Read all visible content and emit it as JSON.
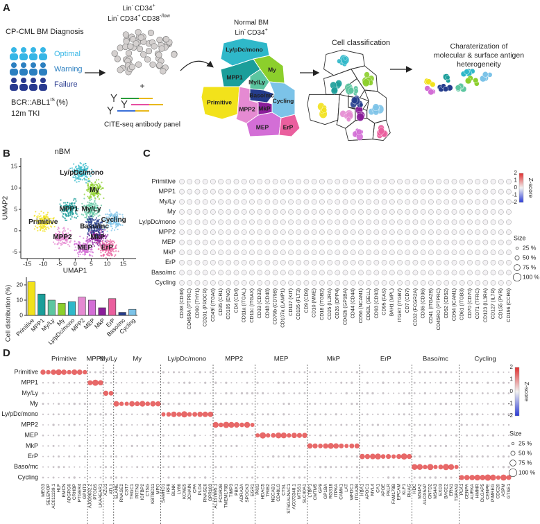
{
  "clusters": [
    "Primitive",
    "MPP1",
    "My/Ly",
    "My",
    "Ly/pDc/mono",
    "MPP2",
    "MEP",
    "MkP",
    "ErP",
    "Baso/mc",
    "Cycling"
  ],
  "cluster_colors": [
    "#f2e21b",
    "#1b9e9a",
    "#5cc6a0",
    "#8ccf2c",
    "#2fb8c9",
    "#e58ad2",
    "#d36ed6",
    "#8a1d9a",
    "#ea5f9e",
    "#243c8c",
    "#7cc3e8"
  ],
  "panel_a": {
    "label": "A",
    "diagnosis": {
      "title": "CP-CML BM Diagnosis",
      "responses": [
        "Optimal",
        "Warning",
        "Failure"
      ],
      "response_colors": [
        "#36b6e6",
        "#2b7fc0",
        "#283a8f"
      ],
      "marker": [
        "BCR::ABL1",
        "IS",
        "(%)"
      ],
      "timepoint": "12m TKI"
    },
    "sort": {
      "line1": [
        "Lin",
        "-",
        "CD34",
        "+"
      ],
      "line2": [
        "Lin",
        "-",
        "CD34",
        "+",
        "CD38",
        "-/low"
      ],
      "panel": "CITE-seq antibody panel"
    },
    "reference": {
      "title": "Normal BM",
      "subtitle": [
        "Lin",
        "-",
        "CD34",
        "+"
      ]
    },
    "classification": "Cell classification",
    "characterization": [
      "Charaterization of",
      "molecular & surface antigen",
      "heterogeneity"
    ]
  },
  "panel_b": {
    "label": "B",
    "umap": {
      "title": "nBM",
      "xlabel": "UMAP1",
      "ylabel": "UMAP2",
      "xlim": [
        -17,
        19
      ],
      "xticks": [
        -15,
        -10,
        -5,
        0,
        5,
        10,
        15
      ],
      "ylim": [
        -6.5,
        17
      ],
      "yticks": [
        -5,
        0,
        5,
        10,
        15
      ]
    },
    "distribution": {
      "type": "bar",
      "ylabel": "Cell distribution (%)",
      "values": [
        22,
        14,
        10,
        8,
        9,
        12,
        10,
        5,
        11,
        2,
        4
      ],
      "ylim": [
        0,
        25
      ],
      "yticks": [
        0,
        10,
        20
      ]
    }
  },
  "panel_c": {
    "label": "C",
    "columns": [
      "CD38 (CD38)",
      "CD45RA (PTPRC)",
      "CD90 (THY1)",
      "CD201 (PROCR)",
      "CD49f (ITGA6)",
      "CD35 (CR1)",
      "CD105 (ENG)",
      "CD4 (CD4)",
      "CD11a (ITGAL)",
      "CD11c (ITGAX)",
      "CD33 (CD33)",
      "CD48 (CD48)",
      "CD79b (CD79B)",
      "CD107a (LAMP1)",
      "CD117 (KIT)",
      "CD135 (FLT3)",
      "CD9 (CD9)",
      "CD10 (MME)",
      "CD18 (ITGB2)",
      "CD25 (IL2RA)",
      "CD26 (DPP4)",
      "CD42b (GP1BA)",
      "CD44 (CD44)",
      "CD56 (NCAM1)",
      "CD62L (SELL)",
      "CD93 (CD93)",
      "CD95 (FAS)",
      "BAH1 (MPL)",
      "ITGB7 (ITGB7)",
      "CD7 (CD7)",
      "CD32 (FCGR2A)",
      "CD36 (CD36)",
      "CD41 (ITGA2B)",
      "CD45RO (PTPRC)",
      "CD52 (CD52)",
      "CD54 (ICAM1)",
      "CD61 (ITGB3)",
      "CD70 (CD70)",
      "CD71 (TFRC)",
      "CD123 (IL3RA)",
      "CD127 (IL7R)",
      "CD155 (PVR)",
      "CD196 (CCR6)"
    ],
    "legend": {
      "zscore_title": "Z-score",
      "zscore_ticks": [
        2,
        1,
        0,
        -1,
        -2
      ],
      "size_title": "Size",
      "sizes": [
        "25 %",
        "50 %",
        "75 %",
        "100 %"
      ]
    }
  },
  "panel_d": {
    "label": "D",
    "genes": [
      [
        "MEG3",
        "SELENOP",
        "AC011139.1",
        "HLF",
        "EMCN",
        "ADGRG6",
        "CRHBP",
        "PTGER4",
        "GPNT3"
      ],
      [
        "AJ009632.2",
        "PTGDS",
        "LKAAEAR1"
      ],
      [
        "AZU1",
        "ATL1"
      ],
      [
        "ELANE",
        "RNASE2",
        "CST7",
        "TRGC1",
        "PRTN3",
        "IGFBP2",
        "CTSG",
        "KBTBD11",
        "MPO"
      ],
      [
        "SAMHD1",
        "IRF8",
        "BLNK",
        "LY86",
        "KCNE5",
        "JCHAIN",
        "CPA",
        "PLD4",
        "RNASE6",
        "GPR183"
      ],
      [
        "AL157895.1",
        "FCGR2B",
        "TMEM176B",
        "TIMP3",
        "PBX1",
        "ADRA2A",
        "SPOCK3",
        "EGR1"
      ],
      [
        "PKIG",
        "HDAC5",
        "TRIB2",
        "NECAB1",
        "CD48LG",
        "CTSL",
        "ST6GALNAC1",
        "AC073348.1",
        "MTSS1",
        "SLC40A1"
      ],
      [
        "LTBP1",
        "CMTM5",
        "GP9",
        "GP1BA",
        "RGS18",
        "ITPKA",
        "CAMK1",
        "LAT",
        "WFDC1",
        "ITGA2B"
      ],
      [
        "HBA1",
        "APOC1",
        "MYL4",
        "CA1",
        "APOE",
        "PKLR",
        "FAM178B",
        "EPCAM",
        "KLF1",
        "RHAG"
      ],
      [
        "HDC",
        "MS4A2",
        "ALOX5AP",
        "CNTD2",
        "MS4A3",
        "EXD3",
        "BACE2",
        "ERN1",
        "TSPAN3"
      ],
      [
        "PLK1",
        "CENPA",
        "AURKA",
        "HMMR",
        "DLGAP5",
        "CENPE",
        "PIMREG",
        "CDC20",
        "ASPM",
        "GTSE1"
      ]
    ],
    "legend": {
      "zscore_title": "Z-score",
      "zscore_ticks": [
        2,
        1,
        0,
        -1,
        -2
      ],
      "size_title": "Size",
      "sizes": [
        "25 %",
        "50 %",
        "75 %",
        "100 %"
      ]
    }
  }
}
